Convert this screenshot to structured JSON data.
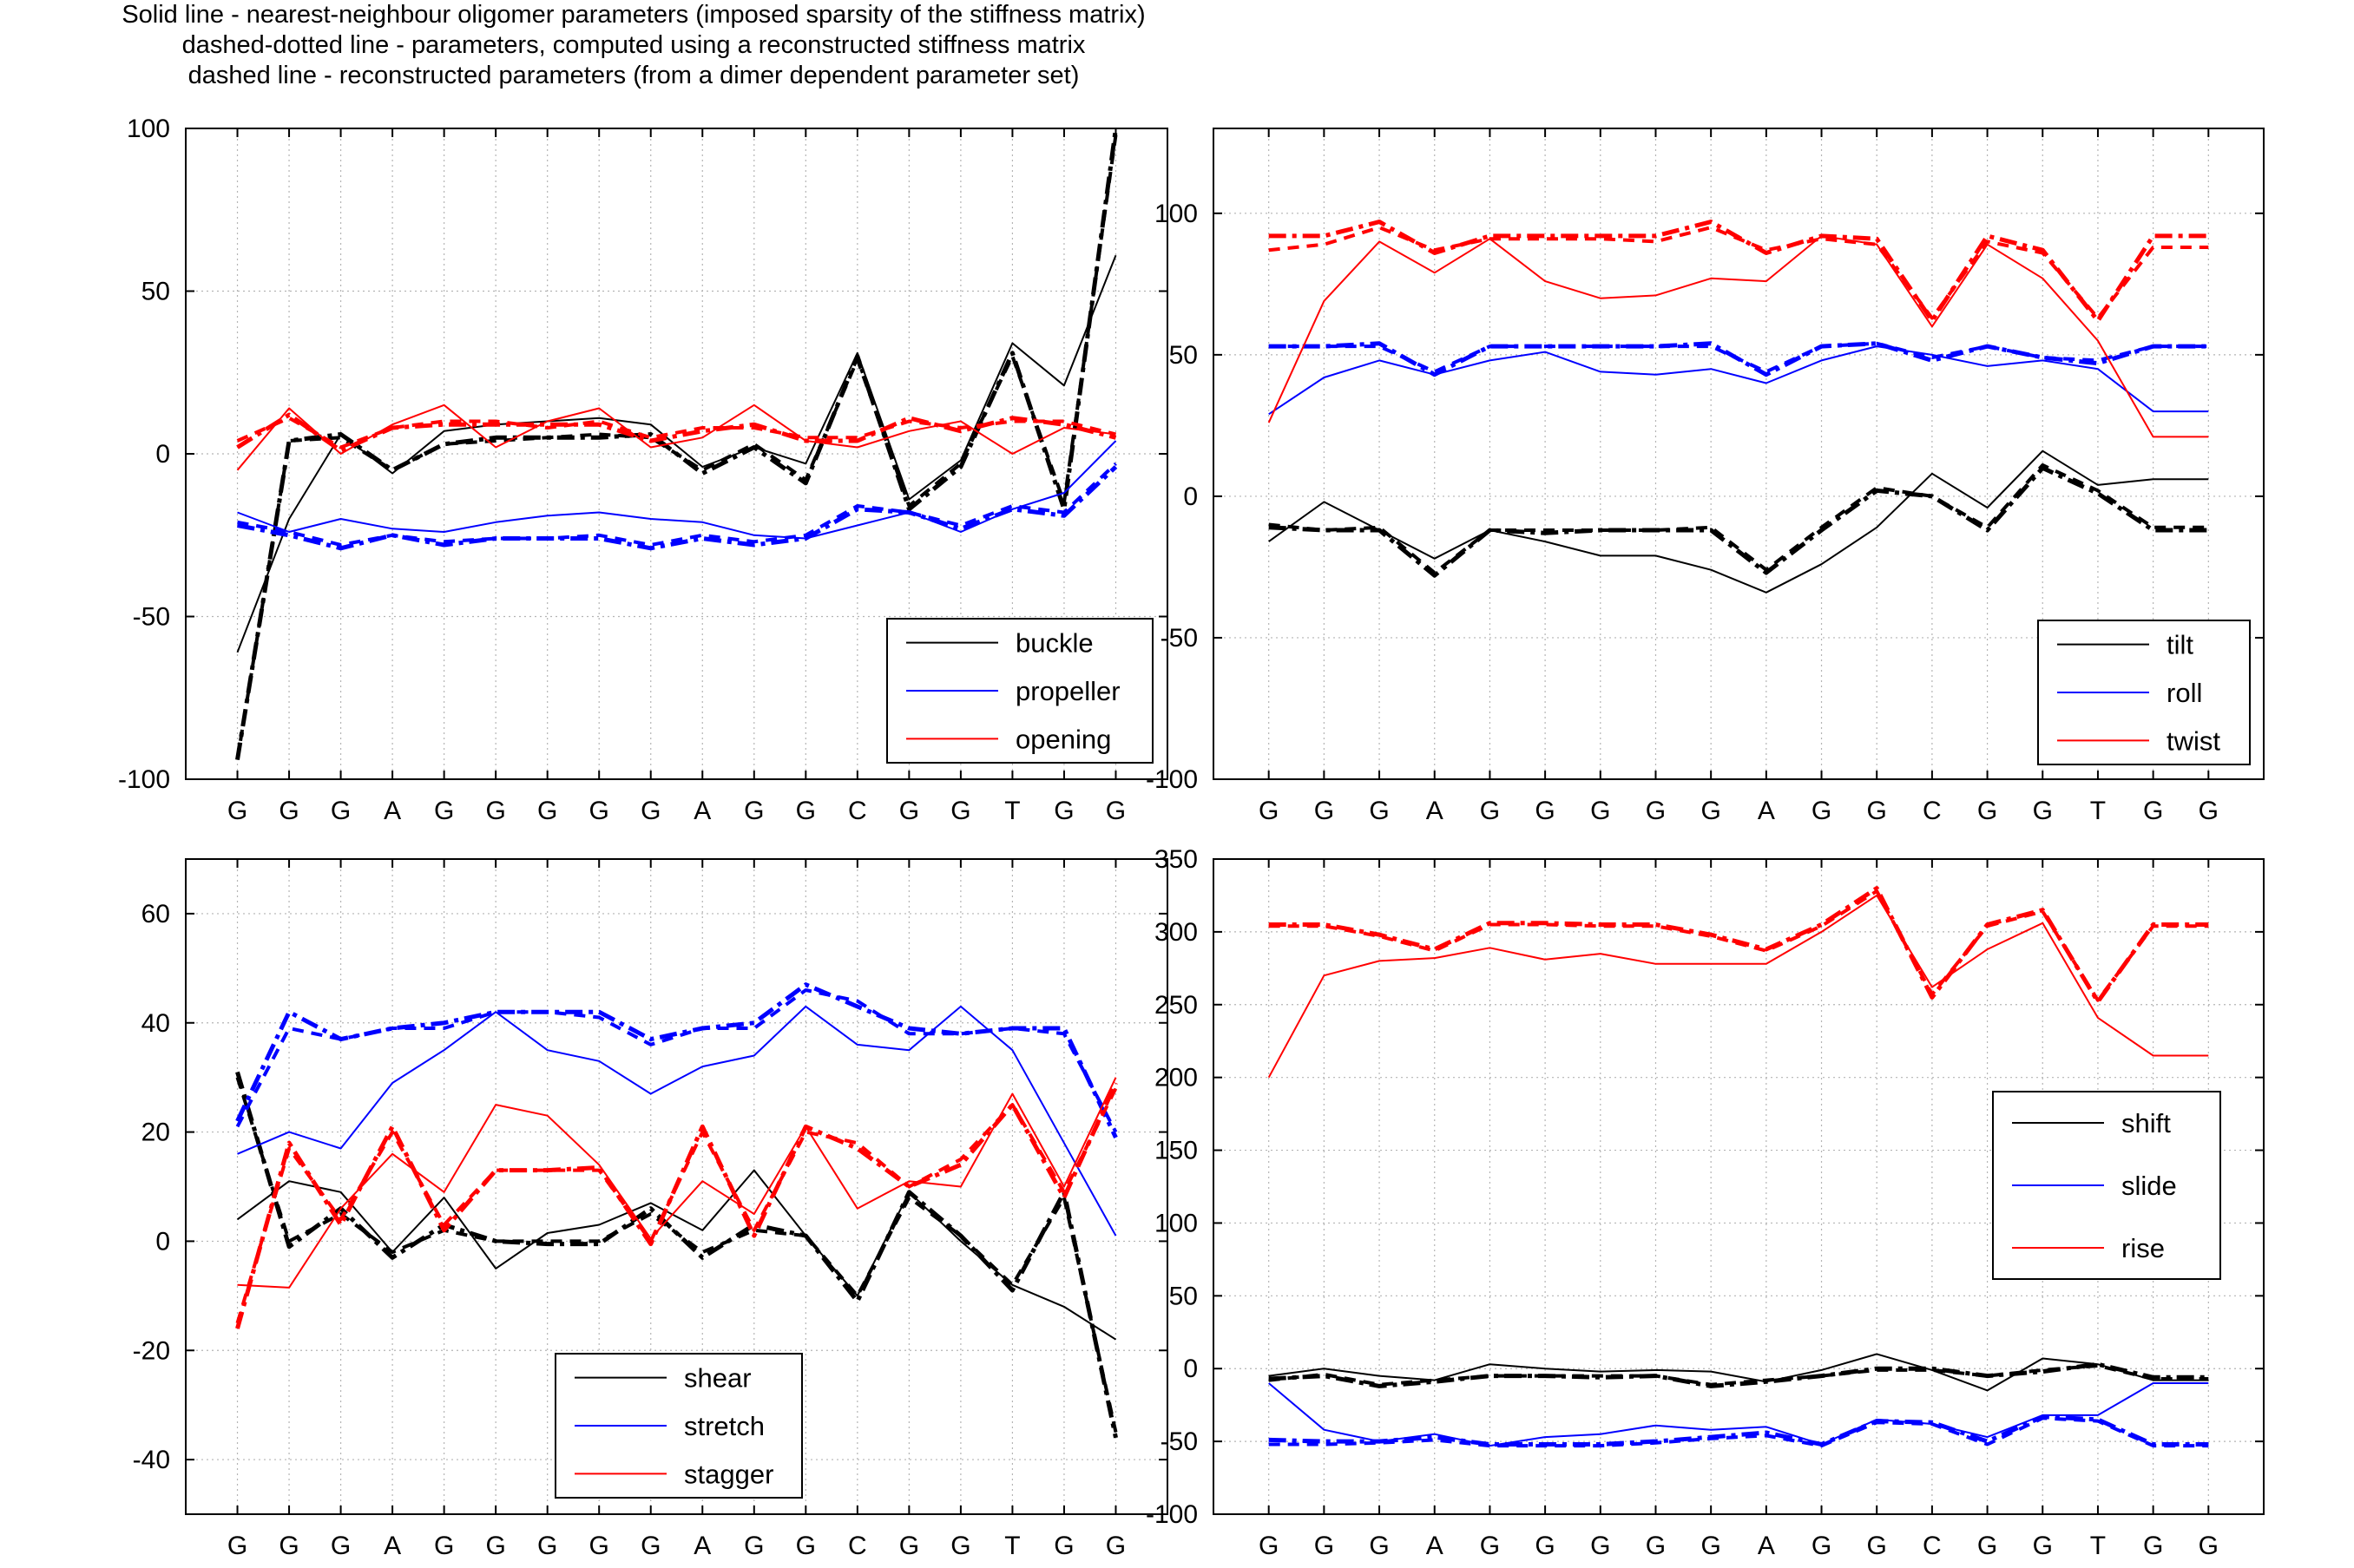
{
  "title_lines": [
    "Solid line - nearest-neighbour oligomer parameters (imposed sparsity of the stiffness matrix)",
    "dashed-dotted line - parameters, computed using a reconstructed stiffness matrix",
    "dashed line - reconstructed parameters (from a dimer dependent parameter set)"
  ],
  "colors": {
    "black": "#000000",
    "blue": "#0000ff",
    "red": "#ff0000",
    "grid": "#b4b4b4"
  },
  "chart_data": [
    {
      "type": "line",
      "categories": [
        "G",
        "G",
        "G",
        "A",
        "G",
        "G",
        "G",
        "G",
        "G",
        "A",
        "G",
        "G",
        "C",
        "G",
        "G",
        "T",
        "G",
        "G"
      ],
      "ylim": [
        -100,
        100
      ],
      "yticks": [
        -100,
        -50,
        0,
        50,
        100
      ],
      "grid": true,
      "legend_position": "bottom-right",
      "series": [
        {
          "name": "buckle",
          "color": "#000000",
          "linestyle": "solid",
          "values": [
            -61,
            -20,
            6,
            -6,
            7,
            9,
            10,
            11,
            9,
            -4,
            2,
            -3,
            31,
            -14,
            -2,
            34,
            21,
            61
          ]
        },
        {
          "name": "buckle",
          "color": "#000000",
          "linestyle": "dashdot",
          "legend": false,
          "values": [
            -94,
            4,
            6,
            -5,
            3,
            5,
            5,
            5,
            6,
            -6,
            2,
            -9,
            30,
            -17,
            -4,
            31,
            -17,
            100
          ]
        },
        {
          "name": "buckle",
          "color": "#000000",
          "linestyle": "dashed",
          "legend": false,
          "values": [
            -94,
            4,
            5,
            -5,
            3,
            4,
            5,
            6,
            5,
            -5,
            3,
            -8,
            29,
            -16,
            -3,
            30,
            -15,
            98
          ]
        },
        {
          "name": "propeller",
          "color": "#0000ff",
          "linestyle": "solid",
          "values": [
            -18,
            -24,
            -20,
            -23,
            -24,
            -21,
            -19,
            -18,
            -20,
            -21,
            -25,
            -26,
            -22,
            -18,
            -24,
            -17,
            -12,
            4
          ]
        },
        {
          "name": "propeller",
          "color": "#0000ff",
          "linestyle": "dashdot",
          "legend": false,
          "values": [
            -22,
            -25,
            -29,
            -25,
            -28,
            -26,
            -26,
            -26,
            -29,
            -26,
            -28,
            -26,
            -17,
            -18,
            -23,
            -17,
            -19,
            -4
          ]
        },
        {
          "name": "propeller",
          "color": "#0000ff",
          "linestyle": "dashed",
          "legend": false,
          "values": [
            -21,
            -24,
            -28,
            -25,
            -27,
            -26,
            -26,
            -25,
            -28,
            -25,
            -27,
            -25,
            -16,
            -18,
            -22,
            -16,
            -18,
            -3
          ]
        },
        {
          "name": "opening",
          "color": "#ff0000",
          "linestyle": "solid",
          "values": [
            -5,
            14,
            0,
            9,
            15,
            2,
            10,
            14,
            2,
            5,
            15,
            4,
            2,
            7,
            10,
            0,
            8,
            6
          ]
        },
        {
          "name": "opening",
          "color": "#ff0000",
          "linestyle": "dashdot",
          "legend": false,
          "values": [
            2,
            12,
            1,
            8,
            9,
            9,
            9,
            9,
            4,
            7,
            9,
            4,
            4,
            11,
            7,
            11,
            9,
            5
          ]
        },
        {
          "name": "opening",
          "color": "#ff0000",
          "linestyle": "dashed",
          "legend": false,
          "values": [
            4,
            11,
            2,
            8,
            10,
            10,
            8,
            10,
            5,
            8,
            8,
            5,
            5,
            10,
            8,
            10,
            10,
            6
          ]
        }
      ]
    },
    {
      "type": "line",
      "categories": [
        "G",
        "G",
        "G",
        "A",
        "G",
        "G",
        "G",
        "G",
        "G",
        "A",
        "G",
        "G",
        "C",
        "G",
        "G",
        "T",
        "G",
        "G"
      ],
      "ylim": [
        -100,
        130
      ],
      "yticks": [
        -100,
        -50,
        0,
        50,
        100
      ],
      "grid": true,
      "legend_position": "bottom-right",
      "series": [
        {
          "name": "tilt",
          "color": "#000000",
          "linestyle": "solid",
          "values": [
            -16,
            -2,
            -12,
            -22,
            -12,
            -16,
            -21,
            -21,
            -26,
            -34,
            -24,
            -11,
            8,
            -4,
            16,
            4,
            6,
            6
          ]
        },
        {
          "name": "tilt",
          "color": "#000000",
          "linestyle": "dashdot",
          "legend": false,
          "values": [
            -11,
            -12,
            -12,
            -28,
            -12,
            -13,
            -12,
            -12,
            -12,
            -27,
            -12,
            2,
            0,
            -12,
            10,
            1,
            -12,
            -12
          ]
        },
        {
          "name": "tilt",
          "color": "#000000",
          "linestyle": "dashed",
          "legend": false,
          "values": [
            -10,
            -12,
            -11,
            -27,
            -12,
            -12,
            -12,
            -12,
            -11,
            -26,
            -11,
            3,
            0,
            -11,
            11,
            2,
            -11,
            -11
          ]
        },
        {
          "name": "roll",
          "color": "#0000ff",
          "linestyle": "solid",
          "values": [
            29,
            42,
            48,
            43,
            48,
            51,
            44,
            43,
            45,
            40,
            48,
            53,
            50,
            46,
            48,
            45,
            30,
            30
          ]
        },
        {
          "name": "roll",
          "color": "#0000ff",
          "linestyle": "dashdot",
          "legend": false,
          "values": [
            53,
            53,
            54,
            43,
            53,
            53,
            53,
            53,
            54,
            43,
            53,
            54,
            48,
            53,
            49,
            47,
            53,
            53
          ]
        },
        {
          "name": "roll",
          "color": "#0000ff",
          "linestyle": "dashed",
          "legend": false,
          "values": [
            53,
            53,
            53,
            44,
            53,
            53,
            53,
            53,
            53,
            44,
            53,
            54,
            49,
            53,
            49,
            48,
            53,
            53
          ]
        },
        {
          "name": "twist",
          "color": "#ff0000",
          "linestyle": "solid",
          "values": [
            26,
            69,
            90,
            79,
            91,
            76,
            70,
            71,
            77,
            76,
            92,
            89,
            60,
            89,
            77,
            55,
            21,
            21
          ]
        },
        {
          "name": "twist",
          "color": "#ff0000",
          "linestyle": "dashdot",
          "legend": false,
          "values": [
            92,
            92,
            97,
            86,
            92,
            92,
            92,
            92,
            97,
            86,
            92,
            91,
            62,
            92,
            87,
            62,
            92,
            92
          ]
        },
        {
          "name": "twist",
          "color": "#ff0000",
          "linestyle": "dashed",
          "legend": false,
          "values": [
            87,
            89,
            95,
            87,
            91,
            91,
            91,
            90,
            95,
            87,
            91,
            89,
            63,
            90,
            86,
            63,
            88,
            88
          ]
        }
      ]
    },
    {
      "type": "line",
      "categories": [
        "G",
        "G",
        "G",
        "A",
        "G",
        "G",
        "G",
        "G",
        "G",
        "A",
        "G",
        "G",
        "C",
        "G",
        "G",
        "T",
        "G",
        "G"
      ],
      "ylim": [
        -50,
        70
      ],
      "yticks": [
        -40,
        -20,
        0,
        20,
        40,
        60
      ],
      "grid": true,
      "legend_position": "bottom-center",
      "series": [
        {
          "name": "shear",
          "color": "#000000",
          "linestyle": "solid",
          "values": [
            4,
            11,
            9,
            -2,
            8,
            -5,
            1.5,
            3,
            7,
            2,
            13,
            1,
            -10,
            9,
            0,
            -8,
            -12,
            -18
          ]
        },
        {
          "name": "shear",
          "color": "#000000",
          "linestyle": "dashdot",
          "legend": false,
          "values": [
            31,
            -1,
            6,
            -3,
            3,
            0,
            -0.5,
            -0.5,
            6,
            -3,
            3,
            1,
            -11,
            9,
            1,
            -9,
            9,
            -36
          ]
        },
        {
          "name": "shear",
          "color": "#000000",
          "linestyle": "dashed",
          "legend": false,
          "values": [
            30,
            0,
            5,
            -2,
            2,
            0,
            0,
            0,
            5,
            -2,
            2,
            1,
            -10,
            8,
            1,
            -8,
            8,
            -35
          ]
        },
        {
          "name": "stretch",
          "color": "#0000ff",
          "linestyle": "solid",
          "values": [
            16,
            20,
            17,
            29,
            35,
            42,
            35,
            33,
            27,
            32,
            34,
            43,
            36,
            35,
            43,
            35,
            18,
            1
          ]
        },
        {
          "name": "stretch",
          "color": "#0000ff",
          "linestyle": "dashdot",
          "legend": false,
          "values": [
            22,
            42,
            37,
            39,
            40,
            42,
            42,
            42,
            37,
            39,
            40,
            47,
            43,
            39,
            38,
            39,
            39,
            19
          ]
        },
        {
          "name": "stretch",
          "color": "#0000ff",
          "linestyle": "dashed",
          "legend": false,
          "values": [
            21,
            39,
            37,
            39,
            39,
            42,
            42,
            41,
            36,
            39,
            39,
            46,
            44,
            38,
            38,
            39,
            38,
            20
          ]
        },
        {
          "name": "stagger",
          "color": "#ff0000",
          "linestyle": "solid",
          "values": [
            -8,
            -8.5,
            6,
            16,
            9,
            25,
            23,
            14,
            0.5,
            11,
            5,
            21,
            6,
            11,
            10,
            27,
            10,
            30
          ]
        },
        {
          "name": "stagger",
          "color": "#ff0000",
          "linestyle": "dashdot",
          "legend": false,
          "values": [
            -16,
            18,
            3,
            21,
            2,
            13,
            13,
            13.5,
            -0.5,
            21,
            1,
            21,
            17,
            10,
            14,
            25,
            8,
            29
          ]
        },
        {
          "name": "stagger",
          "color": "#ff0000",
          "linestyle": "dashed",
          "legend": false,
          "values": [
            -15,
            17,
            4,
            20,
            3,
            13,
            13,
            13,
            0,
            20,
            2,
            20,
            18,
            10,
            15,
            25,
            9,
            28
          ]
        }
      ]
    },
    {
      "type": "line",
      "categories": [
        "G",
        "G",
        "G",
        "A",
        "G",
        "G",
        "G",
        "G",
        "G",
        "A",
        "G",
        "G",
        "C",
        "G",
        "G",
        "T",
        "G",
        "G"
      ],
      "ylim": [
        -100,
        350
      ],
      "yticks": [
        -100,
        -50,
        0,
        50,
        100,
        150,
        200,
        250,
        300,
        350
      ],
      "grid": true,
      "legend_position": "center-right",
      "series": [
        {
          "name": "shift",
          "color": "#000000",
          "linestyle": "solid",
          "values": [
            -5,
            0,
            -5,
            -8,
            3,
            0,
            -2,
            -1,
            -2,
            -9,
            -1,
            10,
            -1,
            -15,
            7,
            3,
            -8,
            -8
          ]
        },
        {
          "name": "shift",
          "color": "#000000",
          "linestyle": "dashdot",
          "legend": false,
          "values": [
            -7,
            -5,
            -12,
            -9,
            -5,
            -5,
            -6,
            -5,
            -12,
            -9,
            -5,
            0,
            0,
            -5,
            -2,
            3,
            -6,
            -6
          ]
        },
        {
          "name": "shift",
          "color": "#000000",
          "linestyle": "dashed",
          "legend": false,
          "values": [
            -8,
            -4,
            -11,
            -8,
            -5,
            -5,
            -5,
            -5,
            -11,
            -8,
            -5,
            -1,
            -1,
            -5,
            -1,
            2,
            -7,
            -7
          ]
        },
        {
          "name": "slide",
          "color": "#0000ff",
          "linestyle": "solid",
          "values": [
            -10,
            -42,
            -50,
            -45,
            -53,
            -47,
            -45,
            -39,
            -42,
            -40,
            -52,
            -35,
            -38,
            -47,
            -32,
            -32,
            -10,
            -10
          ]
        },
        {
          "name": "slide",
          "color": "#0000ff",
          "linestyle": "dashdot",
          "legend": false,
          "values": [
            -49,
            -50,
            -50,
            -47,
            -52,
            -52,
            -52,
            -50,
            -47,
            -44,
            -52,
            -36,
            -37,
            -50,
            -33,
            -35,
            -52,
            -52
          ]
        },
        {
          "name": "slide",
          "color": "#0000ff",
          "linestyle": "dashed",
          "legend": false,
          "values": [
            -52,
            -52,
            -51,
            -49,
            -53,
            -53,
            -53,
            -51,
            -48,
            -46,
            -53,
            -37,
            -38,
            -52,
            -34,
            -36,
            -53,
            -53
          ]
        },
        {
          "name": "rise",
          "color": "#ff0000",
          "linestyle": "solid",
          "values": [
            200,
            270,
            280,
            282,
            289,
            281,
            285,
            278,
            278,
            278,
            300,
            325,
            262,
            288,
            306,
            241,
            215,
            215
          ]
        },
        {
          "name": "rise",
          "color": "#ff0000",
          "linestyle": "dashdot",
          "legend": false,
          "values": [
            305,
            305,
            298,
            288,
            306,
            306,
            305,
            305,
            298,
            288,
            305,
            330,
            255,
            305,
            315,
            252,
            305,
            305
          ]
        },
        {
          "name": "rise",
          "color": "#ff0000",
          "linestyle": "dashed",
          "legend": false,
          "values": [
            304,
            304,
            297,
            287,
            305,
            305,
            304,
            304,
            297,
            287,
            304,
            328,
            257,
            304,
            314,
            253,
            304,
            304
          ]
        }
      ]
    }
  ]
}
